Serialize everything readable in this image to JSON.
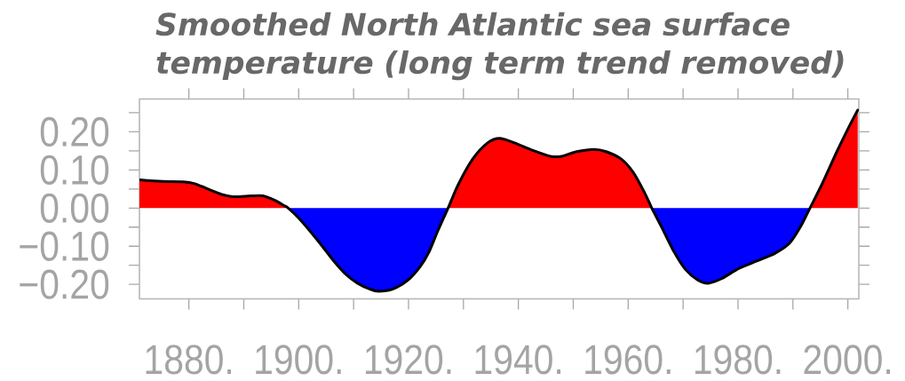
{
  "chart_data": {
    "type": "area",
    "title": "Smoothed North Atlantic sea surface temperature (long term trend removed)",
    "x": [
      1871.0,
      1875.2,
      1879.0,
      1881.1,
      1883.3,
      1886.0,
      1888.1,
      1891.4,
      1893.5,
      1895.7,
      1897.3,
      1898.1,
      1900.0,
      1902.1,
      1904.3,
      1906.4,
      1908.6,
      1910.7,
      1912.9,
      1914.5,
      1917.2,
      1919.9,
      1922.1,
      1923.7,
      1925.3,
      1927.2,
      1929.1,
      1931.7,
      1934.4,
      1936.6,
      1939.3,
      1942.5,
      1945.8,
      1947.9,
      1950.6,
      1953.8,
      1956.0,
      1958.7,
      1960.9,
      1963.0,
      1964.3,
      1966.2,
      1968.4,
      1970.5,
      1972.7,
      1974.6,
      1977.0,
      1980.2,
      1983.4,
      1986.7,
      1989.4,
      1991.5,
      1993.1,
      1995.3,
      1998.0,
      2000.1,
      2001.8
    ],
    "values": [
      0.074,
      0.07,
      0.069,
      0.064,
      0.051,
      0.036,
      0.03,
      0.032,
      0.032,
      0.02,
      0.007,
      0.0,
      -0.026,
      -0.061,
      -0.1,
      -0.139,
      -0.174,
      -0.197,
      -0.212,
      -0.218,
      -0.212,
      -0.189,
      -0.154,
      -0.116,
      -0.061,
      0.0,
      0.063,
      0.129,
      0.171,
      0.183,
      0.171,
      0.152,
      0.136,
      0.136,
      0.148,
      0.154,
      0.148,
      0.129,
      0.094,
      0.04,
      0.0,
      -0.053,
      -0.116,
      -0.162,
      -0.189,
      -0.197,
      -0.185,
      -0.158,
      -0.139,
      -0.119,
      -0.092,
      -0.046,
      0.0,
      0.063,
      0.148,
      0.21,
      0.257
    ],
    "color": "#000000",
    "colors": [
      "#ff0000",
      "#ff0000",
      "#ff0000",
      "#ff0000",
      "#ff0000",
      "#ff0000",
      "#ff0000",
      "#ff0000",
      "#ff0000",
      "#ff0000",
      "#ff0000",
      "#ff0000",
      "#0000ff",
      "#0000ff",
      "#0000ff",
      "#0000ff",
      "#0000ff",
      "#0000ff",
      "#0000ff",
      "#0000ff",
      "#0000ff",
      "#0000ff",
      "#0000ff",
      "#0000ff",
      "#0000ff",
      "#0000ff",
      "#ff0000",
      "#ff0000",
      "#ff0000",
      "#ff0000",
      "#ff0000",
      "#ff0000",
      "#ff0000",
      "#ff0000",
      "#ff0000",
      "#ff0000",
      "#ff0000",
      "#ff0000",
      "#ff0000",
      "#ff0000",
      "#ff0000",
      "#0000ff",
      "#0000ff",
      "#0000ff",
      "#0000ff",
      "#0000ff",
      "#0000ff",
      "#0000ff",
      "#0000ff",
      "#0000ff",
      "#0000ff",
      "#0000ff",
      "#0000ff",
      "#ff0000",
      "#ff0000",
      "#ff0000",
      "#ff0000"
    ],
    "xlim": [
      1871,
      2002
    ],
    "ylim": [
      -0.238,
      0.286
    ],
    "xticks": [
      {
        "value": 1880,
        "label": "1880."
      },
      {
        "value": 1890,
        "label": null
      },
      {
        "value": 1900,
        "label": "1900."
      },
      {
        "value": 1910,
        "label": null
      },
      {
        "value": 1920,
        "label": "1920."
      },
      {
        "value": 1930,
        "label": null
      },
      {
        "value": 1940,
        "label": "1940."
      },
      {
        "value": 1950,
        "label": null
      },
      {
        "value": 1960,
        "label": "1960."
      },
      {
        "value": 1970,
        "label": null
      },
      {
        "value": 1980,
        "label": "1980."
      },
      {
        "value": 1990,
        "label": null
      },
      {
        "value": 2000,
        "label": "2000."
      }
    ],
    "yticks": [
      {
        "value": -0.2,
        "label": "−0.20"
      },
      {
        "value": -0.15,
        "label": null
      },
      {
        "value": -0.1,
        "label": "−0.10"
      },
      {
        "value": -0.05,
        "label": null
      },
      {
        "value": 0,
        "label": "0.00"
      },
      {
        "value": 0.05,
        "label": null
      },
      {
        "value": 0.1,
        "label": "0.10"
      },
      {
        "value": 0.15,
        "label": null
      },
      {
        "value": 0.2,
        "label": "0.20"
      },
      {
        "value": 0.25,
        "label": null
      }
    ]
  }
}
